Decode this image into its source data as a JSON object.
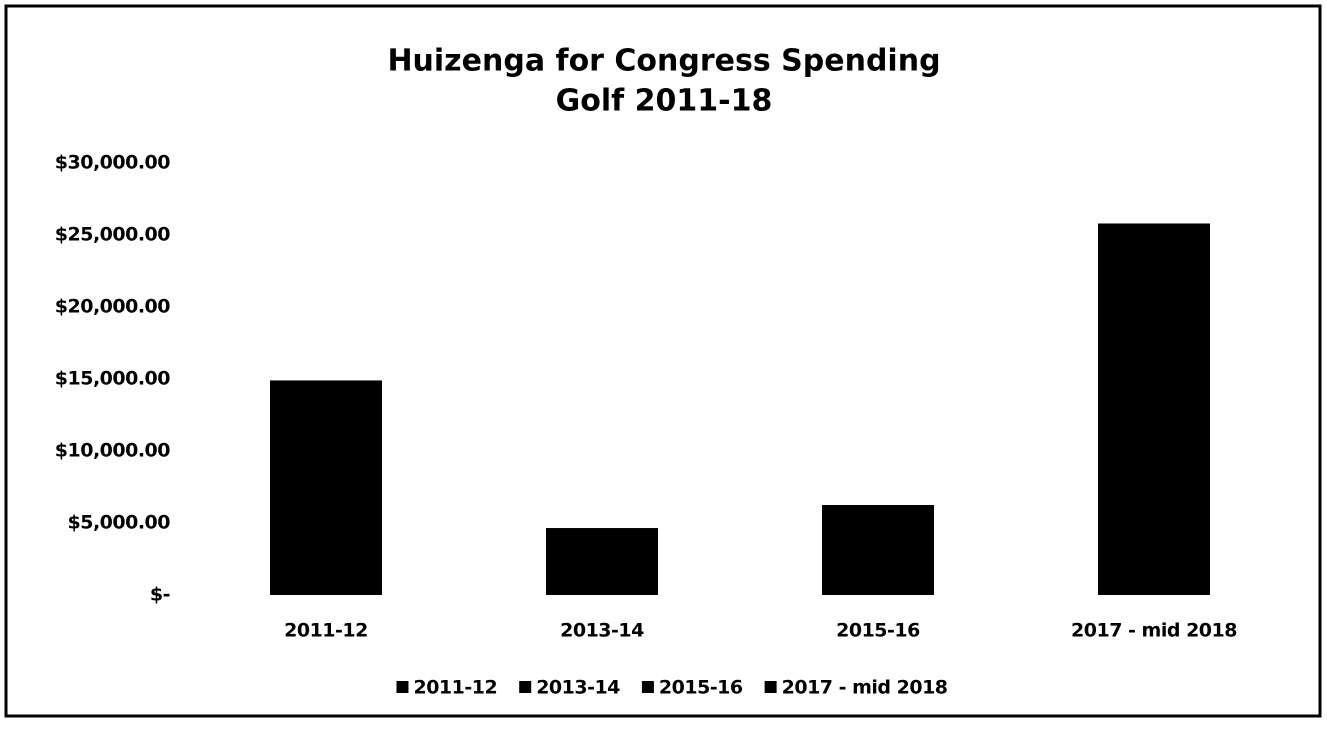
{
  "chart_data": {
    "type": "bar",
    "title": [
      "Huizenga for Congress Spending",
      "Golf 2011-18"
    ],
    "categories": [
      "2011-12",
      "2013-14",
      "2015-16",
      "2017 - mid 2018"
    ],
    "values": [
      14900,
      4650,
      6250,
      25800
    ],
    "color": "#000000",
    "ylim": [
      0,
      30000
    ],
    "yticks": [
      {
        "value": 0,
        "label": "$-"
      },
      {
        "value": 5000,
        "label": "$5,000.00"
      },
      {
        "value": 10000,
        "label": "$10,000.00"
      },
      {
        "value": 15000,
        "label": "$15,000.00"
      },
      {
        "value": 20000,
        "label": "$20,000.00"
      },
      {
        "value": 25000,
        "label": "$25,000.00"
      },
      {
        "value": 30000,
        "label": "$30,000.00"
      }
    ],
    "grid": false,
    "legend": "bottom"
  }
}
